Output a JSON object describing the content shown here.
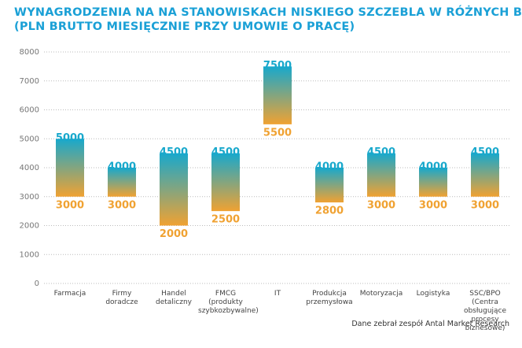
{
  "chart_data": {
    "type": "range-bar",
    "title": "WYNAGRODZENIA NA NA STANOWISKACH NISKIEGO SZCZEBLA W RÓŻNYCH BRANŻACH",
    "subtitle": "(PLN BRUTTO MIESIĘCZNIE PRZY UMOWIE O PRACĘ)",
    "categories": [
      "Farmacja",
      "Firmy\ndoradcze",
      "Handel\ndetaliczny",
      "FMCG\n(produkty\nszybkozbywalne)",
      "IT",
      "Produkcja\nprzemysłowa",
      "Motoryzacja",
      "Logistyka",
      "SSC/BPO (Centra\nobsługujące procesy\nbiznesowe)"
    ],
    "low": [
      3000,
      3000,
      2000,
      2500,
      5500,
      2800,
      3000,
      3000,
      3000
    ],
    "high": [
      5000,
      4000,
      4500,
      4500,
      7500,
      4000,
      4500,
      4000,
      4500
    ],
    "low_color": "#f0a232",
    "high_color": "#18a8cc",
    "ylim": [
      0,
      8000
    ],
    "yticks": [
      0,
      1000,
      2000,
      3000,
      4000,
      5000,
      6000,
      7000,
      8000
    ],
    "grid": true,
    "source": "Dane zebrał zespół Antal Market Research"
  }
}
